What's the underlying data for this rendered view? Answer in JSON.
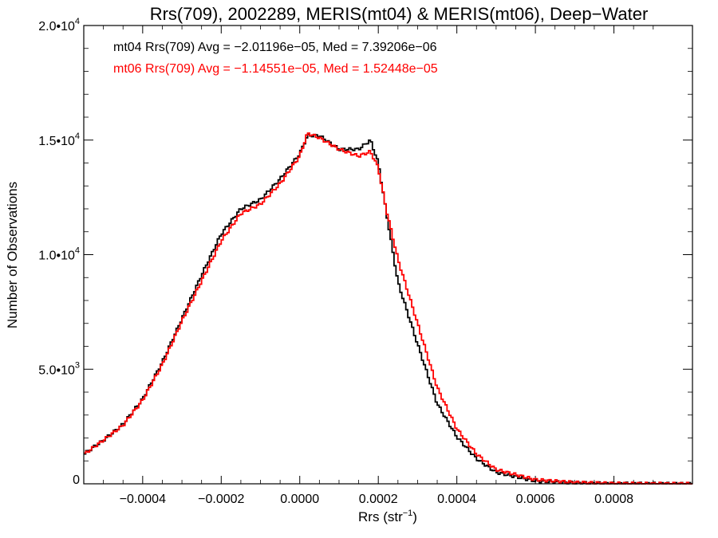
{
  "chart_data": {
    "type": "line",
    "title": "Rrs(709), 2002289, MERIS(mt04) & MERIS(mt06), Deep−Water",
    "xlabel": "Rrs (str",
    "xlabel_sup": "−1",
    "xlabel_close": ")",
    "ylabel": "Number of Observations",
    "xlim": [
      -0.00055,
      0.001
    ],
    "ylim": [
      0,
      20000
    ],
    "grid": false,
    "x_ticks": [
      {
        "value": -0.0004,
        "label": "−0.0004"
      },
      {
        "value": -0.0002,
        "label": "−0.0002"
      },
      {
        "value": 0.0,
        "label": "0.0000"
      },
      {
        "value": 0.0002,
        "label": "0.0002"
      },
      {
        "value": 0.0004,
        "label": "0.0004"
      },
      {
        "value": 0.0006,
        "label": "0.0006"
      },
      {
        "value": 0.0008,
        "label": "0.0008"
      }
    ],
    "y_ticks": [
      {
        "value": 0,
        "mant": "0",
        "exp": ""
      },
      {
        "value": 5000,
        "mant": "5.0•10",
        "exp": "3"
      },
      {
        "value": 10000,
        "mant": "1.0•10",
        "exp": "4"
      },
      {
        "value": 15000,
        "mant": "1.5•10",
        "exp": "4"
      },
      {
        "value": 20000,
        "mant": "2.0•10",
        "exp": "4"
      }
    ],
    "annotations": [
      {
        "text": "mt04 Rrs(709) Avg = −2.01196e−05, Med = 7.39206e−06",
        "color": "#000000"
      },
      {
        "text": "mt06 Rrs(709) Avg = −1.14551e−05, Med = 1.52448e−05",
        "color": "#ff0000"
      }
    ],
    "x": [
      -0.00055,
      -0.0005,
      -0.00045,
      -0.0004,
      -0.00035,
      -0.0003,
      -0.00025,
      -0.0002,
      -0.00015,
      -0.0001,
      -5e-05,
      0.0,
      2e-05,
      5e-05,
      0.0001,
      0.00015,
      0.00018,
      0.0002,
      0.00022,
      0.00025,
      0.0003,
      0.00035,
      0.0004,
      0.00045,
      0.0005,
      0.0006,
      0.0007,
      0.0008,
      0.0009,
      0.001
    ],
    "series": [
      {
        "name": "mt04",
        "color": "#000000",
        "values": [
          1300,
          1900,
          2600,
          3700,
          5300,
          7200,
          9100,
          10900,
          12000,
          12400,
          13300,
          14400,
          15200,
          15200,
          14600,
          14600,
          15000,
          14000,
          11900,
          8800,
          6100,
          3500,
          2050,
          1100,
          500,
          120,
          40,
          10,
          3,
          0
        ]
      },
      {
        "name": "mt06",
        "color": "#ff0000",
        "values": [
          1280,
          1900,
          2550,
          3650,
          5200,
          7100,
          8850,
          10600,
          11800,
          12200,
          13100,
          14300,
          15300,
          15100,
          14600,
          14300,
          14500,
          13800,
          12000,
          9800,
          7000,
          4200,
          2400,
          1300,
          620,
          180,
          60,
          15,
          4,
          0
        ]
      }
    ]
  }
}
